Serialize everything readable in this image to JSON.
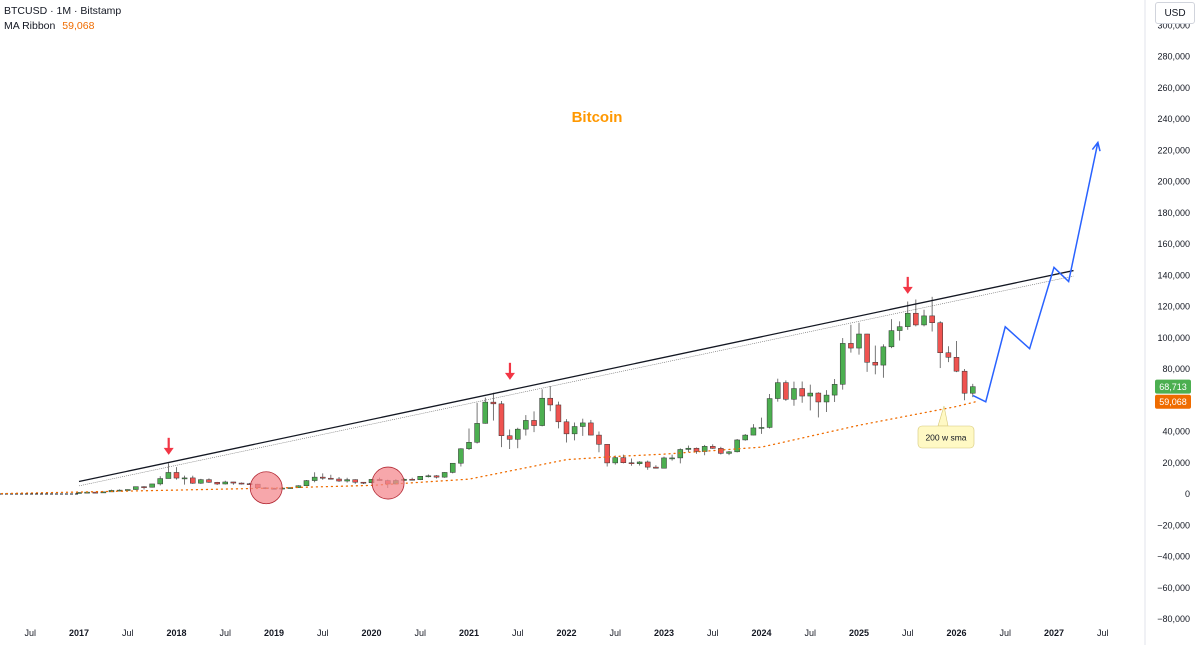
{
  "legend": {
    "symbol_line": "BTCUSD · 1M · Bitstamp",
    "indicator_name": "MA Ribbon",
    "indicator_value": "59,068"
  },
  "currency": "USD",
  "colors": {
    "up": "#26a69a",
    "up_fill": "#4caf50",
    "down": "#ef5350",
    "trendline": "#131722",
    "projection": "#2962ff",
    "sma": "#ef6c00",
    "title": "#ff9800",
    "arrow": "#f23645",
    "circle_fill": "#f48a8f",
    "price_badge": "#4caf50",
    "sma_badge": "#ef6c00",
    "note_bg": "#fff9c4"
  },
  "chart_data": {
    "type": "candlestick",
    "title": "Bitcoin",
    "ylim": [
      -80000,
      300000
    ],
    "y_ticks": [
      280000,
      260000,
      240000,
      220000,
      200000,
      180000,
      160000,
      140000,
      120000,
      100000,
      80000,
      60000,
      40000,
      20000,
      0,
      -20000,
      -40000,
      -60000,
      -80000
    ],
    "y_tick_labels": [
      "280,000",
      "260,000",
      "240,000",
      "220,000",
      "200,000",
      "180,000",
      "160,000",
      "140,000",
      "120,000",
      "100,000",
      "80,000",
      "60,000",
      "40,000",
      "20,000",
      "0",
      "−20,000",
      "−40,000",
      "−60,000",
      "−80,000"
    ],
    "y_top_label_partial": "300,000",
    "x_ticks": [
      {
        "label": "Jul",
        "t": 2016.5,
        "year": false
      },
      {
        "label": "2017",
        "t": 2017.0,
        "year": true
      },
      {
        "label": "Jul",
        "t": 2017.5,
        "year": false
      },
      {
        "label": "2018",
        "t": 2018.0,
        "year": true
      },
      {
        "label": "Jul",
        "t": 2018.5,
        "year": false
      },
      {
        "label": "2019",
        "t": 2019.0,
        "year": true
      },
      {
        "label": "Jul",
        "t": 2019.5,
        "year": false
      },
      {
        "label": "2020",
        "t": 2020.0,
        "year": true
      },
      {
        "label": "Jul",
        "t": 2020.5,
        "year": false
      },
      {
        "label": "2021",
        "t": 2021.0,
        "year": true
      },
      {
        "label": "Jul",
        "t": 2021.5,
        "year": false
      },
      {
        "label": "2022",
        "t": 2022.0,
        "year": true
      },
      {
        "label": "Jul",
        "t": 2022.5,
        "year": false
      },
      {
        "label": "2023",
        "t": 2023.0,
        "year": true
      },
      {
        "label": "Jul",
        "t": 2023.5,
        "year": false
      },
      {
        "label": "2024",
        "t": 2024.0,
        "year": true
      },
      {
        "label": "Jul",
        "t": 2024.5,
        "year": false
      },
      {
        "label": "2025",
        "t": 2025.0,
        "year": true
      },
      {
        "label": "Jul",
        "t": 2025.5,
        "year": false
      },
      {
        "label": "2026",
        "t": 2026.0,
        "year": true
      },
      {
        "label": "Jul",
        "t": 2026.5,
        "year": false
      },
      {
        "label": "2027",
        "t": 2027.0,
        "year": true
      },
      {
        "label": "Jul",
        "t": 2027.5,
        "year": false
      }
    ],
    "candles": [
      [
        2017.0,
        970,
        1200,
        750,
        970
      ],
      [
        2017.083,
        970,
        1200,
        910,
        1190
      ],
      [
        2017.167,
        1190,
        1350,
        890,
        1080
      ],
      [
        2017.25,
        1080,
        1450,
        1050,
        1350
      ],
      [
        2017.333,
        1350,
        2800,
        1340,
        2300
      ],
      [
        2017.417,
        2300,
        3000,
        2100,
        2480
      ],
      [
        2017.5,
        2480,
        2950,
        1830,
        2870
      ],
      [
        2017.583,
        2870,
        4700,
        2700,
        4700
      ],
      [
        2017.667,
        4700,
        5000,
        2900,
        4340
      ],
      [
        2017.75,
        4340,
        6450,
        4100,
        6450
      ],
      [
        2017.833,
        6450,
        11400,
        5500,
        9900
      ],
      [
        2017.917,
        9900,
        19700,
        10900,
        13800
      ],
      [
        2018.0,
        13800,
        17200,
        9200,
        10200
      ],
      [
        2018.083,
        10200,
        11800,
        6000,
        10300
      ],
      [
        2018.167,
        10300,
        11700,
        6500,
        6900
      ],
      [
        2018.25,
        6900,
        9700,
        6500,
        9200
      ],
      [
        2018.333,
        9200,
        10000,
        7100,
        7500
      ],
      [
        2018.417,
        7500,
        7750,
        5800,
        6400
      ],
      [
        2018.5,
        6400,
        8500,
        6100,
        7700
      ],
      [
        2018.583,
        7700,
        7750,
        5900,
        7000
      ],
      [
        2018.667,
        7000,
        7400,
        6100,
        6600
      ],
      [
        2018.75,
        6600,
        7100,
        6200,
        6300
      ],
      [
        2018.833,
        6300,
        6500,
        3600,
        4000
      ],
      [
        2018.917,
        4000,
        4300,
        3100,
        3700
      ],
      [
        2019.0,
        3700,
        4100,
        3400,
        3450
      ],
      [
        2019.083,
        3450,
        4200,
        3300,
        3800
      ],
      [
        2019.167,
        3800,
        4100,
        3700,
        4100
      ],
      [
        2019.25,
        4100,
        5600,
        4050,
        5300
      ],
      [
        2019.333,
        5300,
        9000,
        5300,
        8600
      ],
      [
        2019.417,
        8600,
        13900,
        7500,
        10800
      ],
      [
        2019.5,
        10800,
        13200,
        9100,
        10100
      ],
      [
        2019.583,
        10100,
        12300,
        9300,
        9600
      ],
      [
        2019.667,
        9600,
        10900,
        7800,
        8300
      ],
      [
        2019.75,
        8300,
        10400,
        7300,
        9200
      ],
      [
        2019.833,
        9200,
        9400,
        6500,
        7550
      ],
      [
        2019.917,
        7550,
        7700,
        6400,
        7200
      ],
      [
        2020.0,
        7200,
        9600,
        6900,
        9350
      ],
      [
        2020.083,
        9350,
        10500,
        8450,
        8600
      ],
      [
        2020.167,
        8600,
        9200,
        3850,
        6400
      ],
      [
        2020.25,
        6400,
        9500,
        6150,
        8650
      ],
      [
        2020.333,
        8650,
        10080,
        8100,
        9450
      ],
      [
        2020.417,
        9450,
        10400,
        8900,
        9140
      ],
      [
        2020.5,
        9140,
        11400,
        8900,
        11350
      ],
      [
        2020.583,
        11350,
        12480,
        10600,
        11650
      ],
      [
        2020.667,
        11650,
        12050,
        9900,
        10780
      ],
      [
        2020.75,
        10780,
        14000,
        10400,
        13800
      ],
      [
        2020.833,
        13800,
        19800,
        13200,
        19700
      ],
      [
        2020.917,
        19700,
        29300,
        17600,
        28950
      ],
      [
        2021.0,
        28950,
        41900,
        28200,
        33100
      ],
      [
        2021.083,
        33100,
        58300,
        32300,
        45200
      ],
      [
        2021.167,
        45200,
        61700,
        45000,
        58800
      ],
      [
        2021.25,
        58800,
        64800,
        47000,
        57700
      ],
      [
        2021.333,
        57700,
        59500,
        30000,
        37300
      ],
      [
        2021.417,
        37300,
        41300,
        28800,
        35000
      ],
      [
        2021.5,
        35000,
        42400,
        29300,
        41500
      ],
      [
        2021.583,
        41500,
        50500,
        37400,
        47100
      ],
      [
        2021.667,
        47100,
        52900,
        39600,
        43800
      ],
      [
        2021.75,
        43800,
        67000,
        43300,
        61300
      ],
      [
        2021.833,
        61300,
        69000,
        53000,
        57000
      ],
      [
        2021.917,
        57000,
        59100,
        42000,
        46200
      ],
      [
        2022.0,
        46200,
        47900,
        33000,
        38500
      ],
      [
        2022.083,
        38500,
        45800,
        34300,
        43200
      ],
      [
        2022.167,
        43200,
        48200,
        37200,
        45500
      ],
      [
        2022.25,
        45500,
        47400,
        37600,
        37700
      ],
      [
        2022.333,
        37700,
        40000,
        26700,
        31800
      ],
      [
        2022.417,
        31800,
        31900,
        17600,
        19900
      ],
      [
        2022.5,
        19900,
        24600,
        18800,
        23300
      ],
      [
        2022.583,
        23300,
        25200,
        19600,
        20000
      ],
      [
        2022.667,
        20000,
        22700,
        18100,
        19400
      ],
      [
        2022.75,
        19400,
        21000,
        18200,
        20500
      ],
      [
        2022.833,
        20500,
        21400,
        15500,
        17200
      ],
      [
        2022.917,
        17200,
        18400,
        16300,
        16500
      ],
      [
        2023.0,
        16500,
        23900,
        16500,
        23100
      ],
      [
        2023.083,
        23100,
        25200,
        21400,
        23100
      ],
      [
        2023.167,
        23100,
        29200,
        19600,
        28500
      ],
      [
        2023.25,
        28500,
        31000,
        26900,
        29300
      ],
      [
        2023.333,
        29300,
        29800,
        25800,
        27200
      ],
      [
        2023.417,
        27200,
        31400,
        24800,
        30500
      ],
      [
        2023.5,
        30500,
        31800,
        28900,
        29200
      ],
      [
        2023.583,
        29200,
        30200,
        25300,
        26000
      ],
      [
        2023.667,
        26000,
        27500,
        24900,
        27000
      ],
      [
        2023.75,
        27000,
        35200,
        26600,
        34600
      ],
      [
        2023.833,
        34600,
        38400,
        34100,
        37700
      ],
      [
        2023.917,
        37700,
        44700,
        37600,
        42300
      ],
      [
        2024.0,
        42300,
        48900,
        38500,
        42600
      ],
      [
        2024.083,
        42600,
        64000,
        41900,
        61100
      ],
      [
        2024.167,
        61100,
        73800,
        59100,
        71300
      ],
      [
        2024.25,
        71300,
        72700,
        59600,
        60600
      ],
      [
        2024.333,
        60600,
        71900,
        56500,
        67500
      ],
      [
        2024.417,
        67500,
        72000,
        58400,
        62700
      ],
      [
        2024.5,
        62700,
        70000,
        53500,
        64600
      ],
      [
        2024.583,
        64600,
        65100,
        49000,
        58900
      ],
      [
        2024.667,
        58900,
        66500,
        52500,
        63300
      ],
      [
        2024.75,
        63300,
        73600,
        58900,
        70200
      ],
      [
        2024.833,
        70200,
        99800,
        66800,
        96400
      ],
      [
        2024.917,
        96400,
        108300,
        90500,
        93400
      ],
      [
        2025.0,
        93400,
        109600,
        89200,
        102400
      ],
      [
        2025.083,
        102400,
        102500,
        78200,
        84300
      ],
      [
        2025.167,
        84300,
        95000,
        76600,
        82500
      ],
      [
        2025.25,
        82500,
        95800,
        74400,
        94200
      ],
      [
        2025.333,
        94200,
        111900,
        93400,
        104600
      ],
      [
        2025.417,
        104600,
        110500,
        98200,
        107100
      ],
      [
        2025.5,
        107100,
        123200,
        105100,
        115700
      ],
      [
        2025.583,
        115700,
        124500,
        107300,
        108200
      ],
      [
        2025.667,
        108200,
        117900,
        107300,
        114000
      ],
      [
        2025.75,
        114000,
        126200,
        104000,
        109600
      ],
      [
        2025.833,
        109600,
        110600,
        80600,
        90400
      ],
      [
        2025.917,
        90400,
        94600,
        84400,
        87500
      ],
      [
        2026.0,
        87500,
        97900,
        78000,
        78600
      ],
      [
        2026.083,
        78600,
        80000,
        60000,
        64500
      ],
      [
        2026.167,
        64500,
        70500,
        62000,
        68713
      ]
    ],
    "trendline": {
      "p1": [
        2017.0,
        8000
      ],
      "p2": [
        2027.2,
        143000
      ]
    },
    "trendline_inner": {
      "p1": [
        2017.0,
        5200
      ],
      "p2": [
        2027.2,
        139500
      ]
    },
    "sma_200w": {
      "label": "200 w sma",
      "points": [
        [
          2016.0,
          0
        ],
        [
          2018.0,
          2500
        ],
        [
          2019.0,
          3800
        ],
        [
          2020.0,
          5500
        ],
        [
          2021.0,
          9500
        ],
        [
          2022.0,
          22000
        ],
        [
          2022.5,
          24000
        ],
        [
          2023.0,
          25500
        ],
        [
          2024.0,
          30000
        ],
        [
          2024.5,
          37000
        ],
        [
          2025.0,
          44000
        ],
        [
          2025.5,
          50000
        ],
        [
          2026.0,
          56000
        ],
        [
          2026.2,
          59068
        ]
      ]
    },
    "projection_path": [
      [
        2026.17,
        63000
      ],
      [
        2026.3,
        59000
      ],
      [
        2026.5,
        107000
      ],
      [
        2026.75,
        93000
      ],
      [
        2027.0,
        145000
      ],
      [
        2027.15,
        136000
      ],
      [
        2027.45,
        225000
      ]
    ],
    "arrows": [
      [
        2017.92,
        27000
      ],
      [
        2021.42,
        75000
      ],
      [
        2025.5,
        130000
      ]
    ],
    "highlight_circles": [
      [
        2018.92,
        4000
      ],
      [
        2020.17,
        7000
      ]
    ],
    "current_price": {
      "label": "68,713",
      "value": 68713
    },
    "sma_value": {
      "label": "59,068",
      "value": 59068
    }
  }
}
